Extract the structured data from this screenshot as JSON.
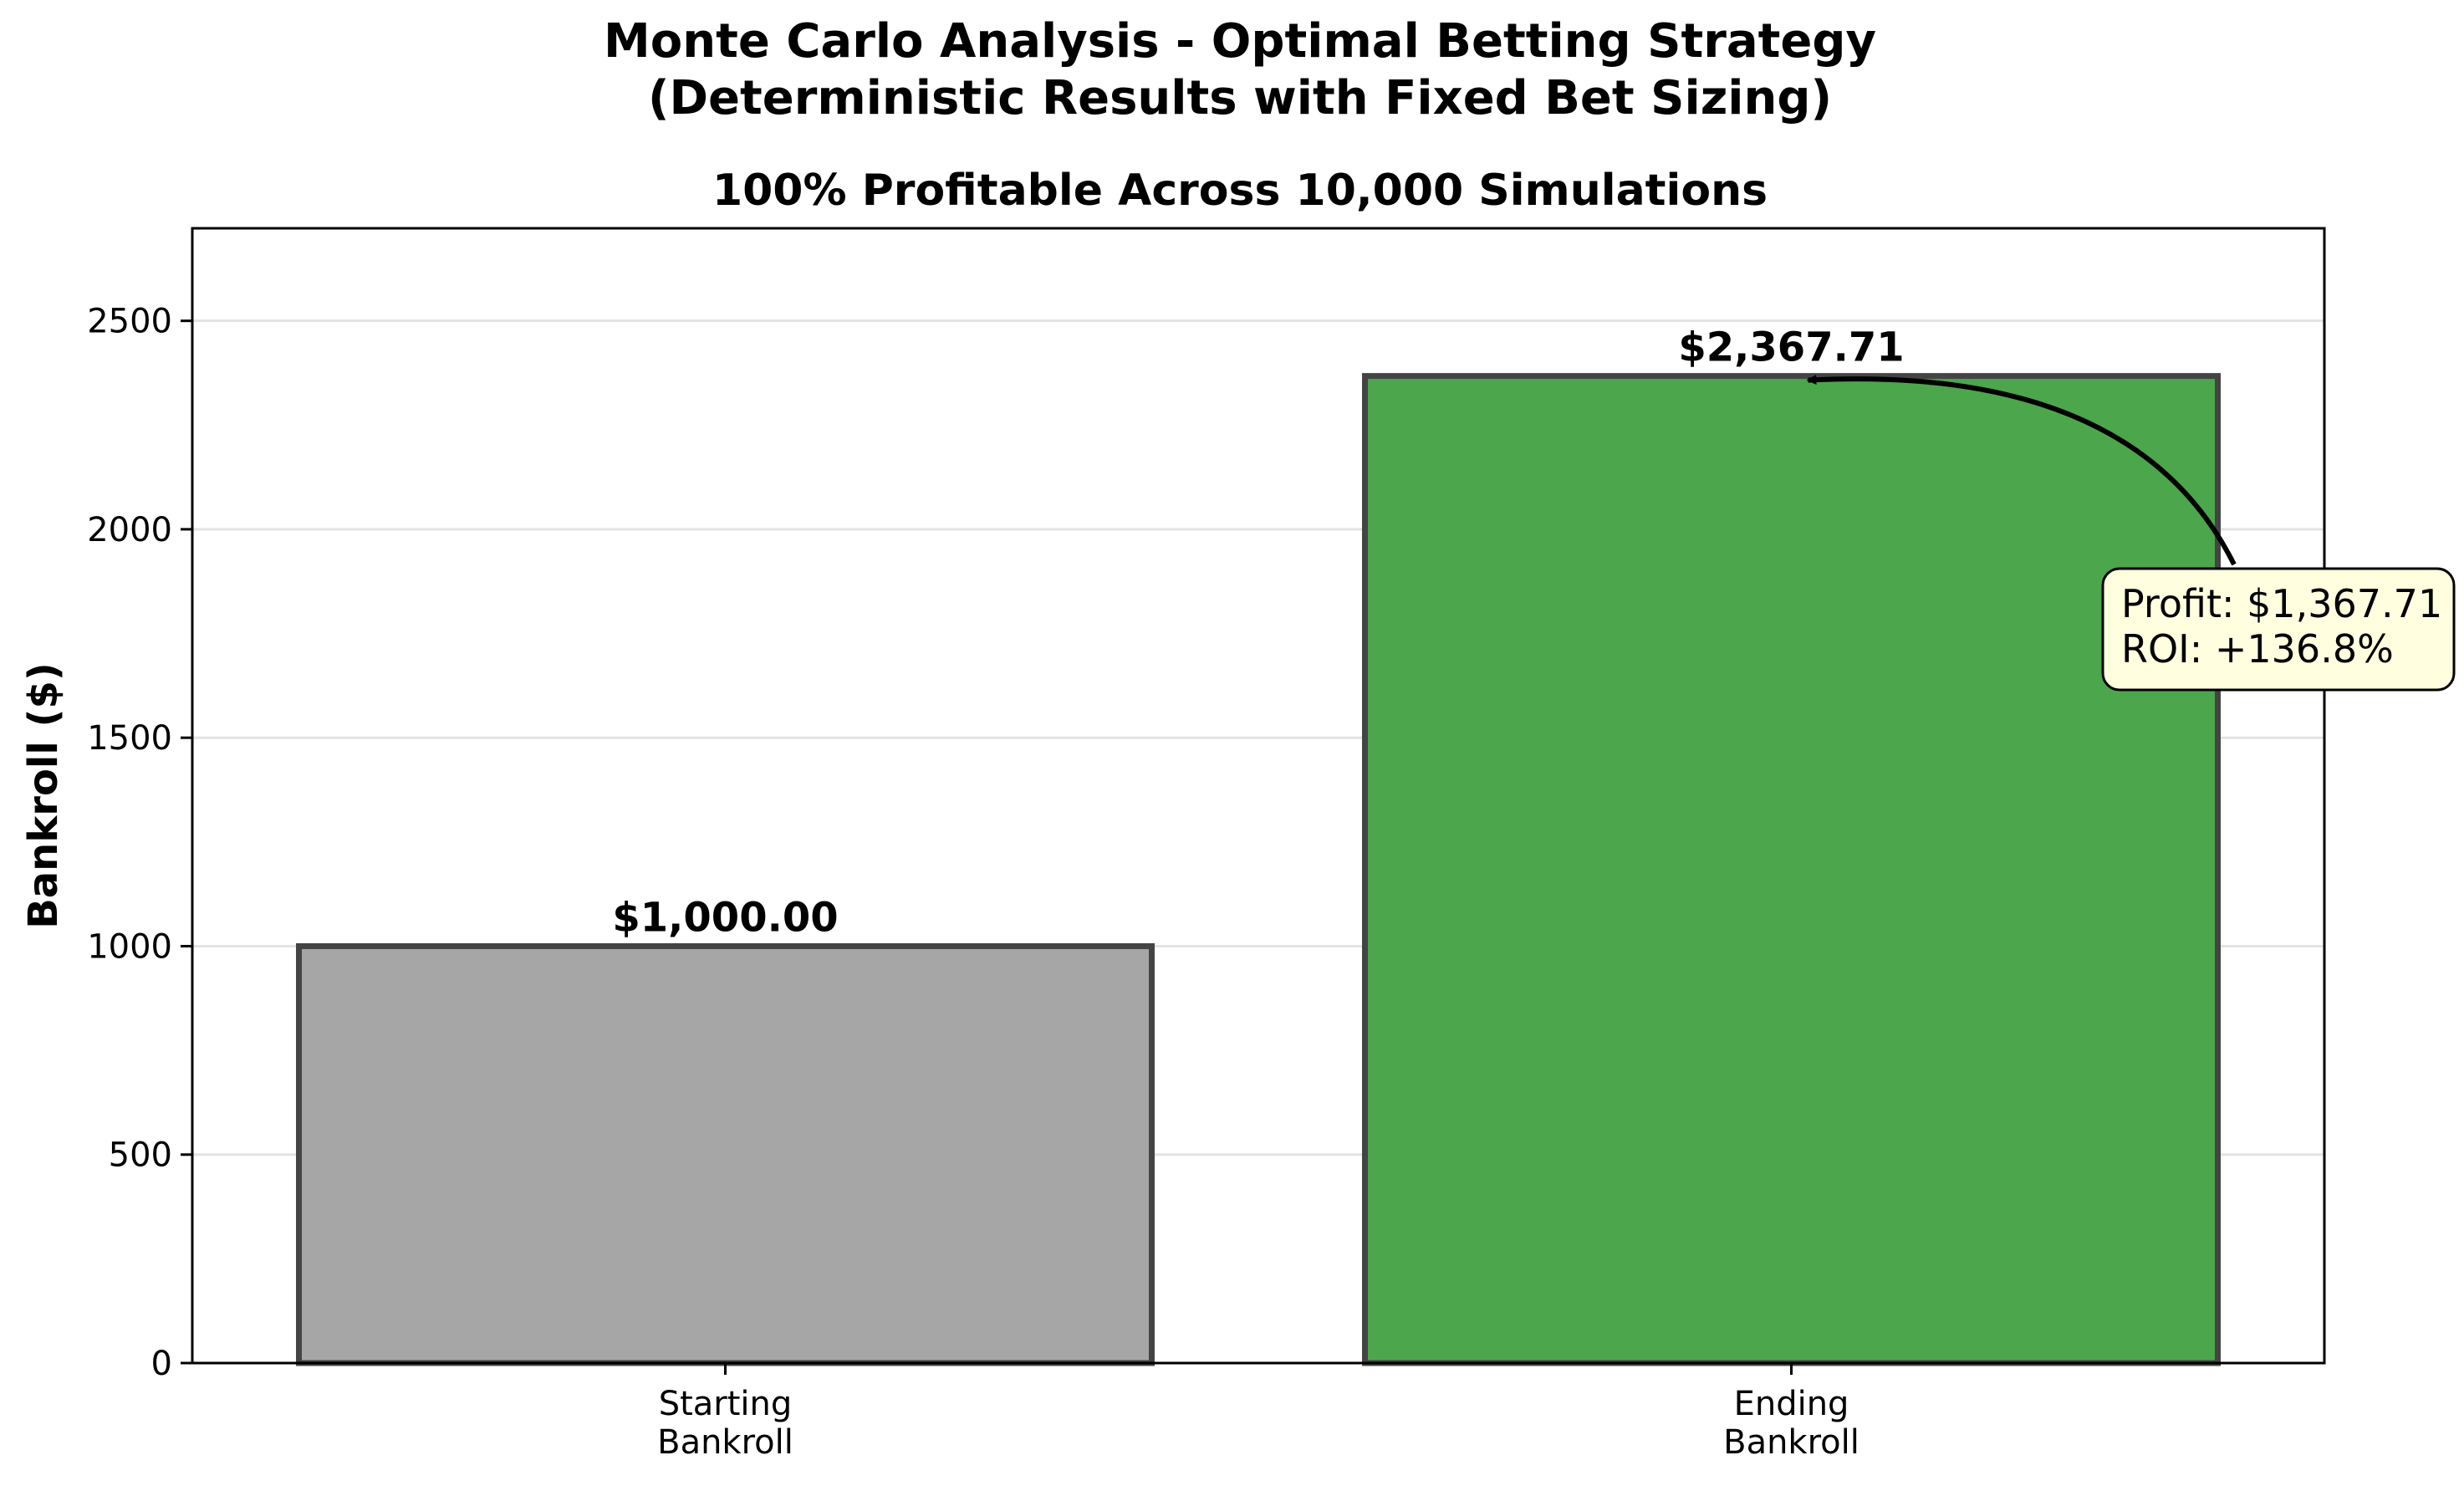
{
  "chart_data": {
    "type": "bar",
    "title_line1": "Monte Carlo Analysis - Optimal Betting Strategy",
    "title_line2": "(Deterministic Results with Fixed Bet Sizing)",
    "subtitle": "100% Profitable Across 10,000 Simulations",
    "xlabel": "",
    "ylabel": "Bankroll ($)",
    "ylim": [
      0,
      2722
    ],
    "yticks": [
      0,
      500,
      1000,
      1500,
      2000,
      2500
    ],
    "grid": true,
    "categories": [
      [
        "Starting",
        "Bankroll"
      ],
      [
        "Ending",
        "Bankroll"
      ]
    ],
    "values": [
      1000.0,
      2367.71
    ],
    "value_labels": [
      "$1,000.00",
      "$2,367.71"
    ],
    "colors": [
      "#a6a6a6",
      "#4ca64c"
    ],
    "edge_color": "#444444",
    "annotation": {
      "lines": [
        "Profit: $1,367.71",
        "ROI: +136.8%"
      ],
      "points_to_bar": 1,
      "box_color": "#ffffe0"
    }
  }
}
